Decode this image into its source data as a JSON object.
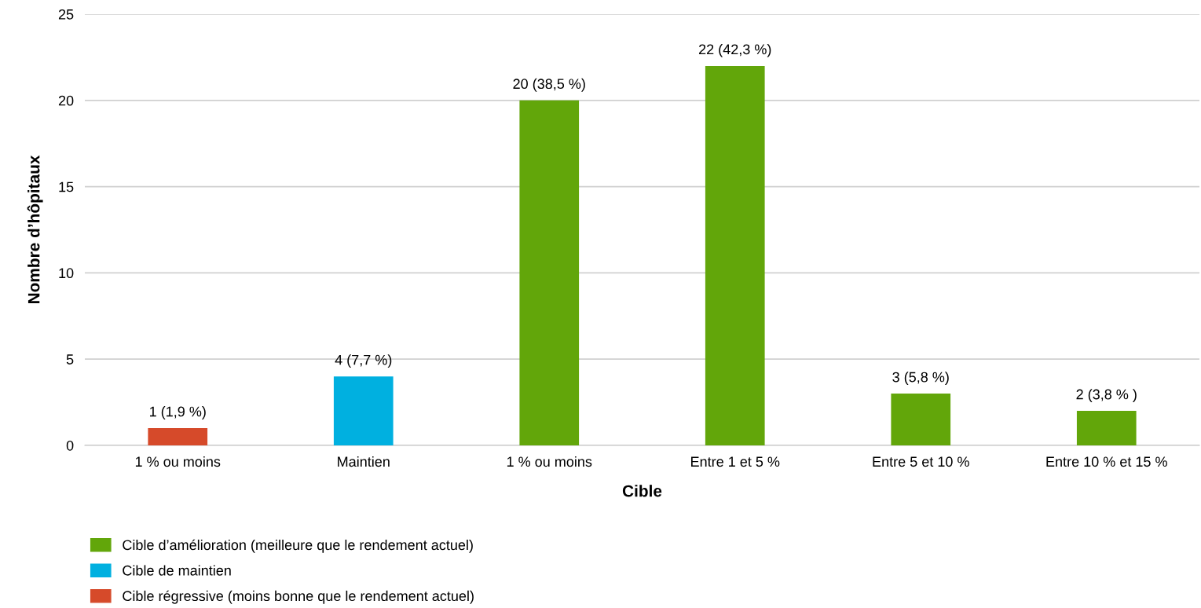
{
  "chart_data": {
    "type": "bar",
    "xlabel": "Cible",
    "ylabel": "Nombre d’hôpitaux",
    "categories": [
      "1 % ou moins",
      "Maintien",
      "1 % ou moins",
      "Entre 1 et 5 %",
      "Entre 5 et 10 %",
      "Entre 10 % et 15 %"
    ],
    "stacked": true,
    "series": [
      {
        "name": "Cible d’amélioration (meilleure que le rendement actuel)",
        "color": "#62a60a",
        "values": [
          null,
          null,
          20,
          22,
          3,
          2
        ],
        "value_labels": [
          null,
          null,
          "20 (38,5 %)",
          "22 (42,3 %)",
          "3 (5,8 %)",
          "2 (3,8 % )"
        ]
      },
      {
        "name": "Cible de maintien",
        "color": "#00b0e0",
        "values": [
          null,
          4,
          null,
          null,
          null,
          null
        ],
        "value_labels": [
          null,
          "4 (7,7 %)",
          null,
          null,
          null,
          null
        ]
      },
      {
        "name": "Cible régressive (moins bonne que le rendement actuel)",
        "color": "#d64a2a",
        "values": [
          1,
          null,
          null,
          null,
          null,
          null
        ],
        "value_labels": [
          "1 (1,9 %)",
          null,
          null,
          null,
          null,
          null
        ]
      }
    ],
    "ylim": [
      0,
      25
    ],
    "yticks": [
      0,
      5,
      10,
      15,
      20,
      25
    ],
    "grid": "y",
    "legend": "bottom"
  }
}
